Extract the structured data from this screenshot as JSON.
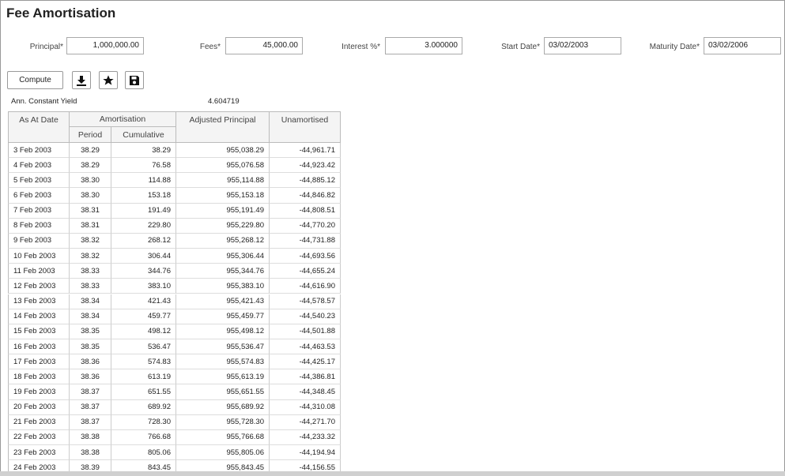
{
  "header": {
    "title": "Fee Amortisation"
  },
  "form": {
    "fields": [
      {
        "label": "Principal*",
        "value": "1,000,000.00"
      },
      {
        "label": "Fees*",
        "value": "45,000.00"
      },
      {
        "label": "Interest %*",
        "value": "3.000000"
      },
      {
        "label": "Start Date*",
        "value": "03/02/2003"
      },
      {
        "label": "Maturity Date*",
        "value": "03/02/2006"
      }
    ],
    "compute": "Compute"
  },
  "yield": {
    "label": "Ann. Constant Yield",
    "value": "4.604719"
  },
  "table": {
    "headers": {
      "date": "As At Date",
      "group": "Amortisation",
      "period": "Period",
      "cumulative": "Cumulative",
      "adjusted": "Adjusted Principal",
      "unamortised": "Unamortised"
    },
    "rows": [
      [
        "3 Feb 2003",
        "38.29",
        "38.29",
        "955,038.29",
        "-44,961.71"
      ],
      [
        "4 Feb 2003",
        "38.29",
        "76.58",
        "955,076.58",
        "-44,923.42"
      ],
      [
        "5 Feb 2003",
        "38.30",
        "114.88",
        "955,114.88",
        "-44,885.12"
      ],
      [
        "6 Feb 2003",
        "38.30",
        "153.18",
        "955,153.18",
        "-44,846.82"
      ],
      [
        "7 Feb 2003",
        "38.31",
        "191.49",
        "955,191.49",
        "-44,808.51"
      ],
      [
        "8 Feb 2003",
        "38.31",
        "229.80",
        "955,229.80",
        "-44,770.20"
      ],
      [
        "9 Feb 2003",
        "38.32",
        "268.12",
        "955,268.12",
        "-44,731.88"
      ],
      [
        "10 Feb 2003",
        "38.32",
        "306.44",
        "955,306.44",
        "-44,693.56"
      ],
      [
        "11 Feb 2003",
        "38.33",
        "344.76",
        "955,344.76",
        "-44,655.24"
      ],
      [
        "12 Feb 2003",
        "38.33",
        "383.10",
        "955,383.10",
        "-44,616.90"
      ],
      [
        "13 Feb 2003",
        "38.34",
        "421.43",
        "955,421.43",
        "-44,578.57"
      ],
      [
        "14 Feb 2003",
        "38.34",
        "459.77",
        "955,459.77",
        "-44,540.23"
      ],
      [
        "15 Feb 2003",
        "38.35",
        "498.12",
        "955,498.12",
        "-44,501.88"
      ],
      [
        "16 Feb 2003",
        "38.35",
        "536.47",
        "955,536.47",
        "-44,463.53"
      ],
      [
        "17 Feb 2003",
        "38.36",
        "574.83",
        "955,574.83",
        "-44,425.17"
      ],
      [
        "18 Feb 2003",
        "38.36",
        "613.19",
        "955,613.19",
        "-44,386.81"
      ],
      [
        "19 Feb 2003",
        "38.37",
        "651.55",
        "955,651.55",
        "-44,348.45"
      ],
      [
        "20 Feb 2003",
        "38.37",
        "689.92",
        "955,689.92",
        "-44,310.08"
      ],
      [
        "21 Feb 2003",
        "38.37",
        "728.30",
        "955,728.30",
        "-44,271.70"
      ],
      [
        "22 Feb 2003",
        "38.38",
        "766.68",
        "955,766.68",
        "-44,233.32"
      ],
      [
        "23 Feb 2003",
        "38.38",
        "805.06",
        "955,805.06",
        "-44,194.94"
      ],
      [
        "24 Feb 2003",
        "38.39",
        "843.45",
        "955,843.45",
        "-44,156.55"
      ]
    ]
  }
}
